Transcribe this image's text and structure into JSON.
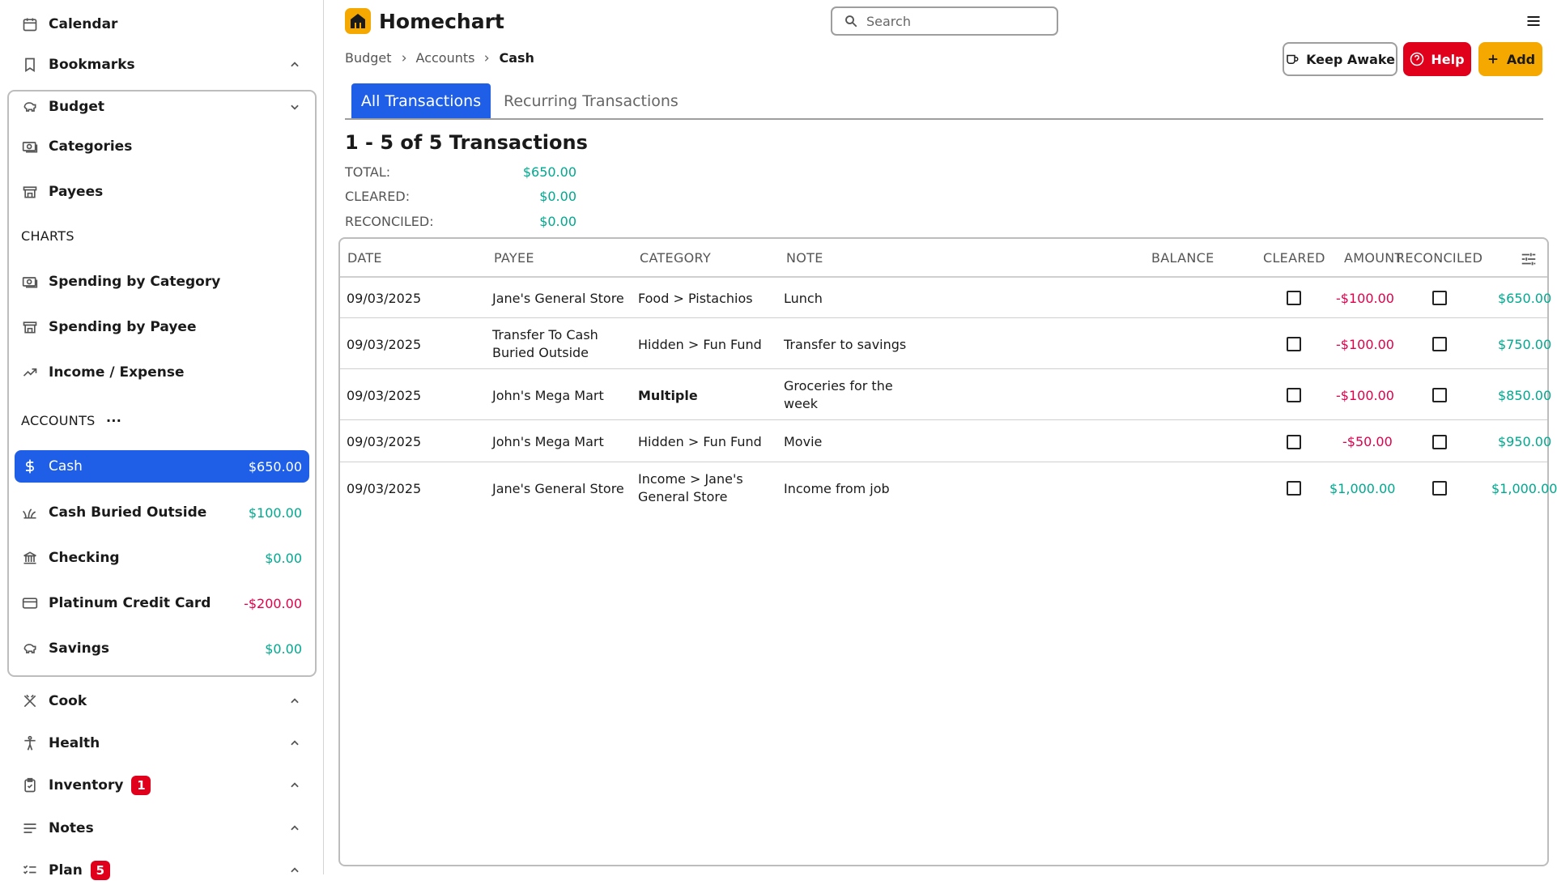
{
  "sidebar": {
    "calendar": "Calendar",
    "bookmarks": "Bookmarks",
    "budget": "Budget",
    "categories": "Categories",
    "payees": "Payees",
    "charts_label": "CHARTS",
    "spending_by_category": "Spending by Category",
    "spending_by_payee": "Spending by Payee",
    "income_expense": "Income / Expense",
    "accounts_label": "ACCOUNTS",
    "accounts_more": "···",
    "accounts": [
      {
        "name": "Cash",
        "amount": "$650.00"
      },
      {
        "name": "Cash Buried Outside",
        "amount": "$100.00"
      },
      {
        "name": "Checking",
        "amount": "$0.00"
      },
      {
        "name": "Platinum Credit Card",
        "amount": "-$200.00"
      },
      {
        "name": "Savings",
        "amount": "$0.00"
      }
    ],
    "cook": "Cook",
    "health": "Health",
    "inventory": "Inventory",
    "inventory_badge": "1",
    "notes": "Notes",
    "plan": "Plan",
    "plan_badge": "5"
  },
  "header": {
    "app_name": "Homechart",
    "search_placeholder": "Search"
  },
  "breadcrumb": [
    "Budget",
    "Accounts",
    "Cash"
  ],
  "actions": {
    "keep_awake": "Keep Awake",
    "help": "Help",
    "add": "Add"
  },
  "tabs": [
    "All Transactions",
    "Recurring Transactions"
  ],
  "summary": {
    "title": "1 - 5 of 5 Transactions",
    "total_label": "TOTAL:",
    "total_value": "$650.00",
    "cleared_label": "CLEARED:",
    "cleared_value": "$0.00",
    "reconciled_label": "RECONCILED:",
    "reconciled_value": "$0.00"
  },
  "table": {
    "columns": [
      "DATE",
      "PAYEE",
      "CATEGORY",
      "NOTE",
      "AMOUNT",
      "BALANCE",
      "CLEARED",
      "RECONCILED"
    ],
    "rows": [
      {
        "date": "09/03/2025",
        "payee": "Jane's General Store",
        "category": "Food > Pistachios",
        "note": "Lunch",
        "amount": "-$100.00",
        "balance": "$650.00"
      },
      {
        "date": "09/03/2025",
        "payee": "Transfer To Cash Buried Outside",
        "category": "Hidden > Fun Fund",
        "note": "Transfer to savings",
        "amount": "-$100.00",
        "balance": "$750.00"
      },
      {
        "date": "09/03/2025",
        "payee": "John's Mega Mart",
        "category": "Multiple",
        "note": "Groceries for the week",
        "amount": "-$100.00",
        "balance": "$850.00"
      },
      {
        "date": "09/03/2025",
        "payee": "John's Mega Mart",
        "category": "Hidden > Fun Fund",
        "note": "Movie",
        "amount": "-$50.00",
        "balance": "$950.00"
      },
      {
        "date": "09/03/2025",
        "payee": "Jane's General Store",
        "category": "Income > Jane's General Store",
        "note": "Income from job",
        "amount": "$1,000.00",
        "balance": "$1,000.00"
      }
    ]
  },
  "colors": {
    "accent": "#1f5fe8",
    "positive": "#00a88f",
    "negative": "#e0004d",
    "brand": "#f5a800",
    "danger": "#e0001b"
  }
}
